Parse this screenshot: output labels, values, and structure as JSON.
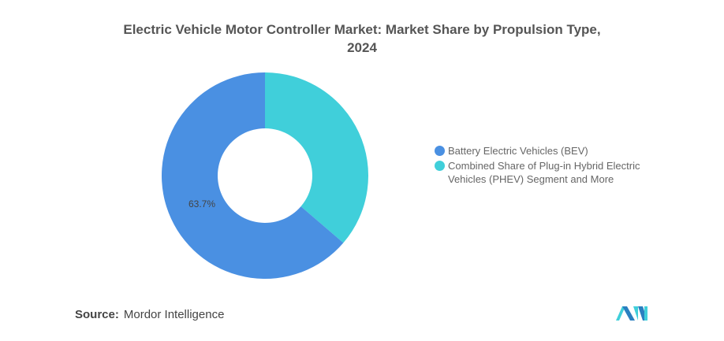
{
  "chart_data": {
    "type": "pie",
    "donut": true,
    "title": "Electric Vehicle Motor Controller Market: Market Share by Propulsion Type, 2024",
    "title_lines": [
      "Electric Vehicle Motor Controller Market: Market Share by Propulsion Type,",
      "2024"
    ],
    "slices": [
      {
        "name": "Combined Share of Plug-in Hybrid Electric Vehicles (PHEV) Segment and More",
        "legend_lines": [
          "Combined Share of Plug-in Hybrid Electric",
          "Vehicles (PHEV) Segment and More"
        ],
        "value": 36.3,
        "color": "#40CFDA",
        "label": ""
      },
      {
        "name": "Battery Electric Vehicles (BEV)",
        "legend_lines": [
          "Battery Electric Vehicles (BEV)"
        ],
        "value": 63.7,
        "color": "#4A90E2",
        "label": "63.7%"
      }
    ],
    "legend_order": [
      1,
      0
    ],
    "legend_position": "right"
  },
  "footer": {
    "source_label": "Source:",
    "source_value": "Mordor Intelligence"
  },
  "logo": {
    "text": "Mordor Intelligence logo"
  }
}
